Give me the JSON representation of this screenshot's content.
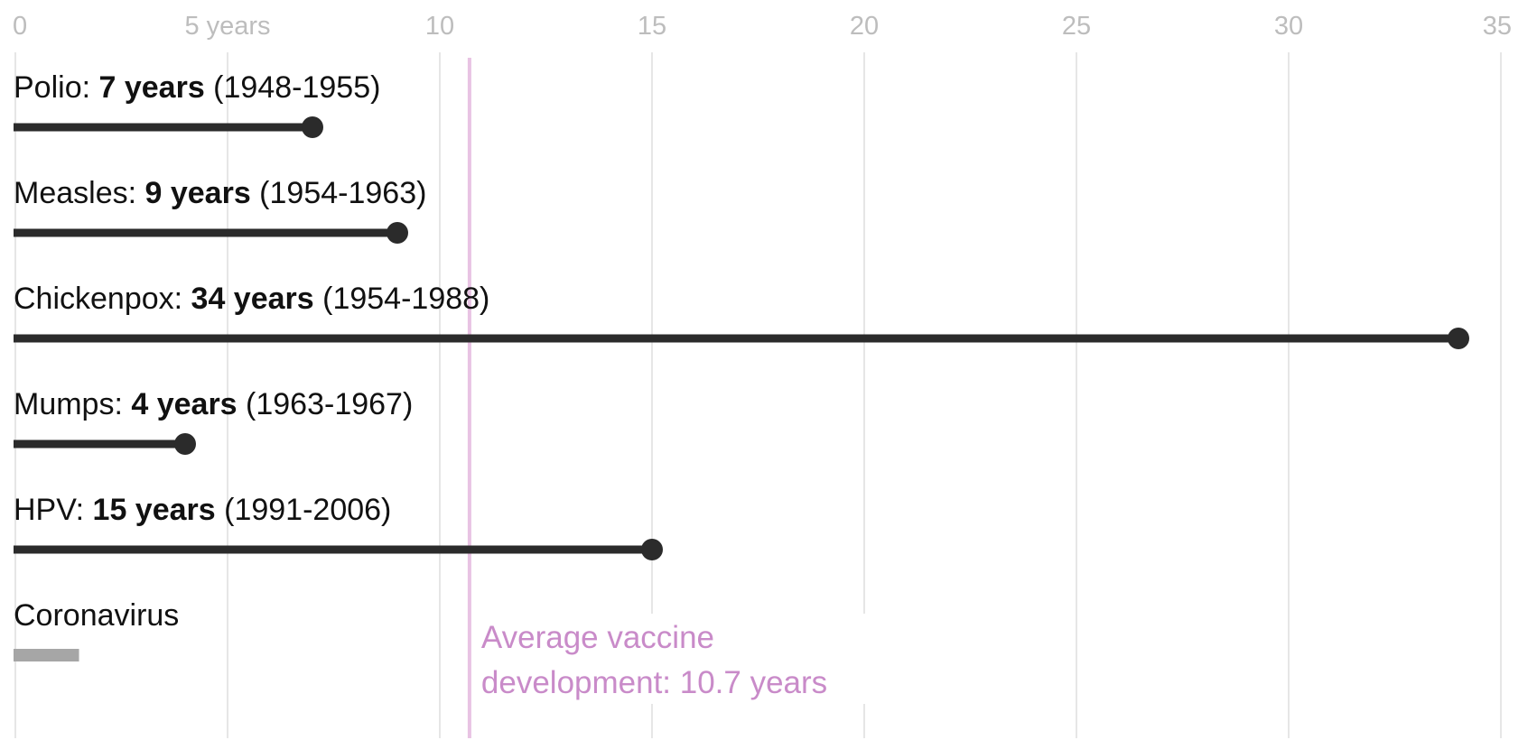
{
  "chart_data": {
    "type": "bar",
    "orientation": "horizontal",
    "xlim": [
      0,
      35
    ],
    "x_ticks": [
      {
        "value": 0,
        "label": "0"
      },
      {
        "value": 5,
        "label": "5 years"
      },
      {
        "value": 10,
        "label": "10"
      },
      {
        "value": 15,
        "label": "15"
      },
      {
        "value": 20,
        "label": "20"
      },
      {
        "value": 25,
        "label": "25"
      },
      {
        "value": 30,
        "label": "30"
      },
      {
        "value": 35,
        "label": "35"
      }
    ],
    "grid": true,
    "series": [
      {
        "items": [
          {
            "name": "Polio",
            "label_prefix": "Polio: ",
            "label_bold": "7 years",
            "label_suffix": " (1948-1955)",
            "value": 7,
            "complete": true
          },
          {
            "name": "Measles",
            "label_prefix": "Measles: ",
            "label_bold": "9 years",
            "label_suffix": " (1954-1963)",
            "value": 9,
            "complete": true
          },
          {
            "name": "Chickenpox",
            "label_prefix": "Chickenpox: ",
            "label_bold": "34 years",
            "label_suffix": " (1954-1988)",
            "value": 34,
            "complete": true
          },
          {
            "name": "Mumps",
            "label_prefix": "Mumps: ",
            "label_bold": "4 years",
            "label_suffix": " (1963-1967)",
            "value": 4,
            "complete": true
          },
          {
            "name": "HPV",
            "label_prefix": "HPV: ",
            "label_bold": "15 years",
            "label_suffix": " (1991-2006)",
            "value": 15,
            "complete": true
          },
          {
            "name": "Coronavirus",
            "label_prefix": "Coronavirus",
            "label_bold": "",
            "label_suffix": "",
            "value": 1.5,
            "complete": false
          }
        ]
      }
    ],
    "reference_line": {
      "value": 10.7,
      "label_lines": [
        "Average vaccine",
        "development: 10.7 years"
      ]
    }
  },
  "colors": {
    "bar": "#2b2b2b",
    "bar_in_progress": "#a6a6a6",
    "grid": "#e6e6e6",
    "tick_label": "#bdbdbd",
    "reference": "#c98bc9",
    "reference_line": "#e8c3e3",
    "text": "#111111"
  }
}
